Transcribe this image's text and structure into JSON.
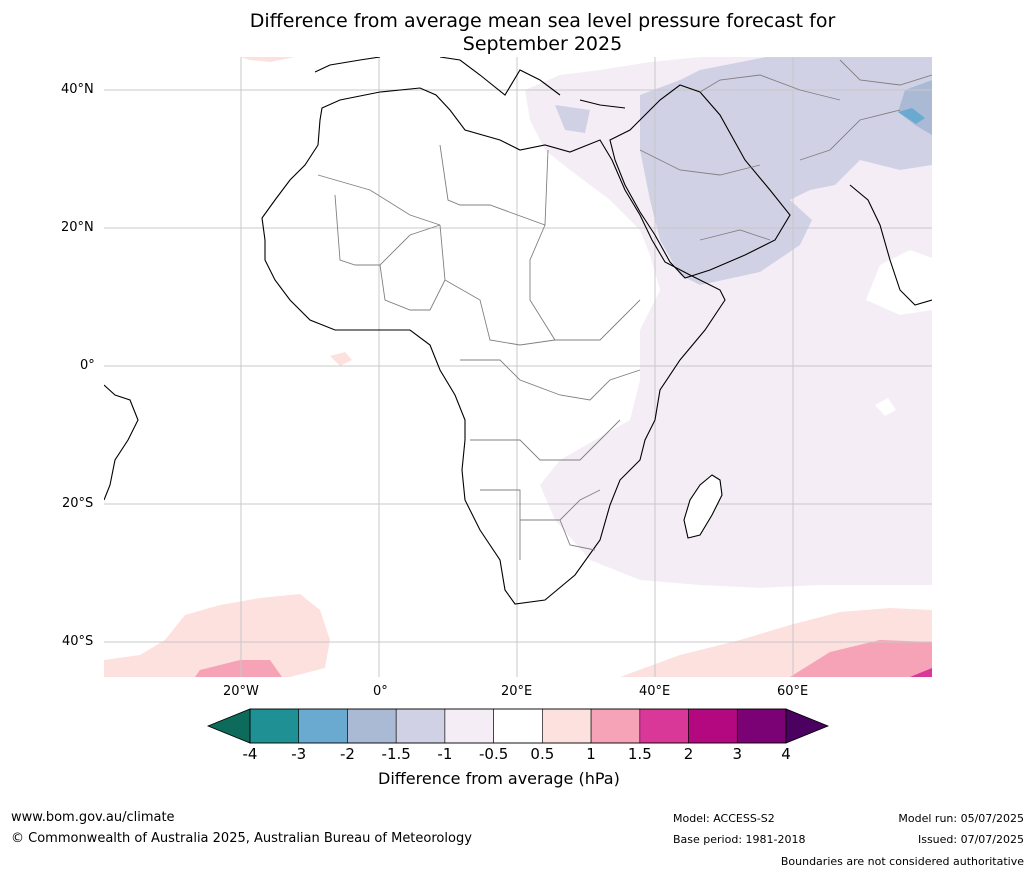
{
  "title_line1": "Difference from average mean sea level pressure forecast for",
  "title_line2": "September 2025",
  "lat_labels": [
    "40°N",
    "20°N",
    "0°",
    "20°S",
    "40°S"
  ],
  "lon_labels": [
    "20°W",
    "0°",
    "20°E",
    "40°E",
    "60°E"
  ],
  "colorbar": {
    "title": "Difference from average (hPa)",
    "ticks": [
      "-4",
      "-3",
      "-2",
      "-1.5",
      "-1",
      "-0.5",
      "0.5",
      "1",
      "1.5",
      "2",
      "3",
      "4"
    ],
    "colors": [
      "#1f9195",
      "#6aaad1",
      "#aabad5",
      "#d1d1e5",
      "#f4edf6",
      "#ffffff",
      "#fde1df",
      "#f6a2b7",
      "#d93899",
      "#b3087f",
      "#7b0274"
    ],
    "low_extend_color": "#0c6b5a",
    "high_extend_color": "#4a0160"
  },
  "footer": {
    "url": "www.bom.gov.au/climate",
    "copyright": "© Commonwealth of Australia 2025, Australian Bureau of Meteorology",
    "model": "Model: ACCESS-S2",
    "base_period": "Base period: 1981-2018",
    "model_run": "Model run: 05/07/2025",
    "issued": "Issued: 07/07/2025",
    "disclaimer": "Boundaries are not considered authoritative"
  }
}
